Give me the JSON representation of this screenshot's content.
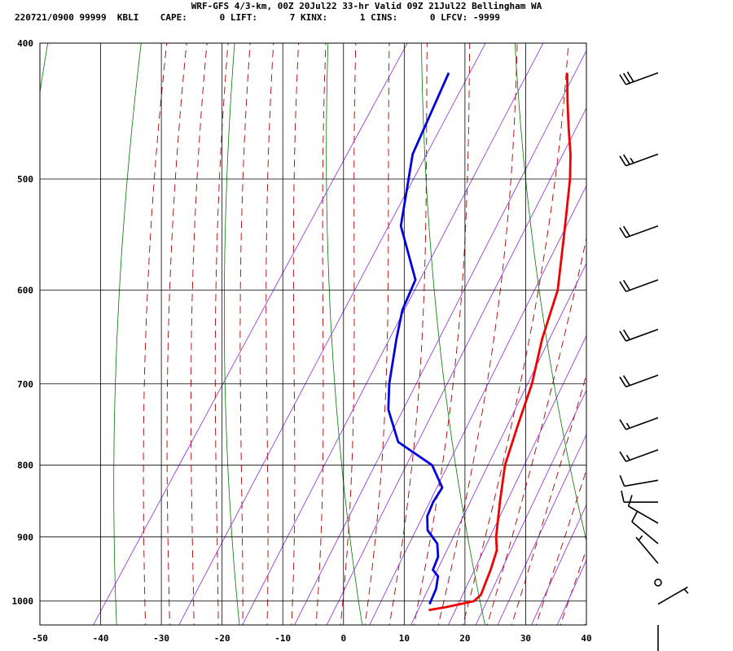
{
  "header": {
    "title_line": "WRF-GFS 4/3-km, 00Z 20Jul22 33-hr Valid 09Z 21Jul22 Bellingham WA",
    "stats_line": "220721/0900 99999  KBLI    CAPE:      0 LIFT:      7 KINX:      1 CINS:      0 LFCV: -9999"
  },
  "chart_data": {
    "type": "skew-t",
    "xlim": [
      -50,
      40
    ],
    "ylim_pressure": [
      1040,
      400
    ],
    "x_ticks": [
      "-50",
      "-40",
      "-30",
      "-20",
      "-10",
      "0",
      "10",
      "20",
      "30",
      "40"
    ],
    "y_ticks": [
      "400",
      "500",
      "600",
      "700",
      "800",
      "900",
      "1000"
    ],
    "x_tick_values": [
      -50,
      -40,
      -30,
      -20,
      -10,
      0,
      10,
      20,
      30,
      40
    ],
    "y_tick_values": [
      400,
      500,
      600,
      700,
      800,
      900,
      1000
    ],
    "temperature": {
      "color": "#ee0000",
      "points": [
        [
          420,
          -20.5
        ],
        [
          440,
          -17.5
        ],
        [
          460,
          -14.5
        ],
        [
          480,
          -11.5
        ],
        [
          500,
          -9
        ],
        [
          550,
          -4
        ],
        [
          600,
          0.5
        ],
        [
          650,
          3
        ],
        [
          700,
          6
        ],
        [
          750,
          8
        ],
        [
          800,
          10
        ],
        [
          850,
          13
        ],
        [
          900,
          16
        ],
        [
          920,
          17.5
        ],
        [
          950,
          18.5
        ],
        [
          970,
          19
        ],
        [
          990,
          19.5
        ],
        [
          1000,
          19
        ],
        [
          1010,
          15
        ],
        [
          1015,
          12.5
        ]
      ]
    },
    "dewpoint": {
      "color": "#0000dd",
      "points": [
        [
          420,
          -40
        ],
        [
          480,
          -37.5
        ],
        [
          540,
          -32
        ],
        [
          590,
          -24
        ],
        [
          620,
          -23
        ],
        [
          650,
          -21
        ],
        [
          700,
          -17.5
        ],
        [
          730,
          -15
        ],
        [
          770,
          -10
        ],
        [
          800,
          -2
        ],
        [
          830,
          2
        ],
        [
          850,
          2
        ],
        [
          870,
          2.5
        ],
        [
          890,
          4
        ],
        [
          910,
          7
        ],
        [
          930,
          8.5
        ],
        [
          950,
          9
        ],
        [
          960,
          10.5
        ],
        [
          980,
          11.5
        ],
        [
          1005,
          12
        ]
      ]
    },
    "winds": [
      {
        "p": 420,
        "dir": 250,
        "spd": 30
      },
      {
        "p": 480,
        "dir": 250,
        "spd": 25
      },
      {
        "p": 540,
        "dir": 250,
        "spd": 20
      },
      {
        "p": 590,
        "dir": 250,
        "spd": 20
      },
      {
        "p": 640,
        "dir": 250,
        "spd": 20
      },
      {
        "p": 690,
        "dir": 250,
        "spd": 20
      },
      {
        "p": 740,
        "dir": 250,
        "spd": 15
      },
      {
        "p": 780,
        "dir": 250,
        "spd": 15
      },
      {
        "p": 820,
        "dir": 260,
        "spd": 10
      },
      {
        "p": 850,
        "dir": 270,
        "spd": 10
      },
      {
        "p": 880,
        "dir": 300,
        "spd": 10
      },
      {
        "p": 910,
        "dir": 310,
        "spd": 10
      },
      {
        "p": 940,
        "dir": 320,
        "spd": 5
      },
      {
        "p": 970,
        "dir": 0,
        "spd": 0
      },
      {
        "p": 1005,
        "dir": 60,
        "spd": 5
      },
      {
        "p": 1040,
        "dir": 180,
        "spd": 10
      }
    ],
    "isotherm_color": "#000000",
    "dry_adiabat_color": "#007700",
    "moist_adiabat_color": "#aa0000",
    "mixing_ratio_color": "#8a2be2",
    "grid": true
  }
}
